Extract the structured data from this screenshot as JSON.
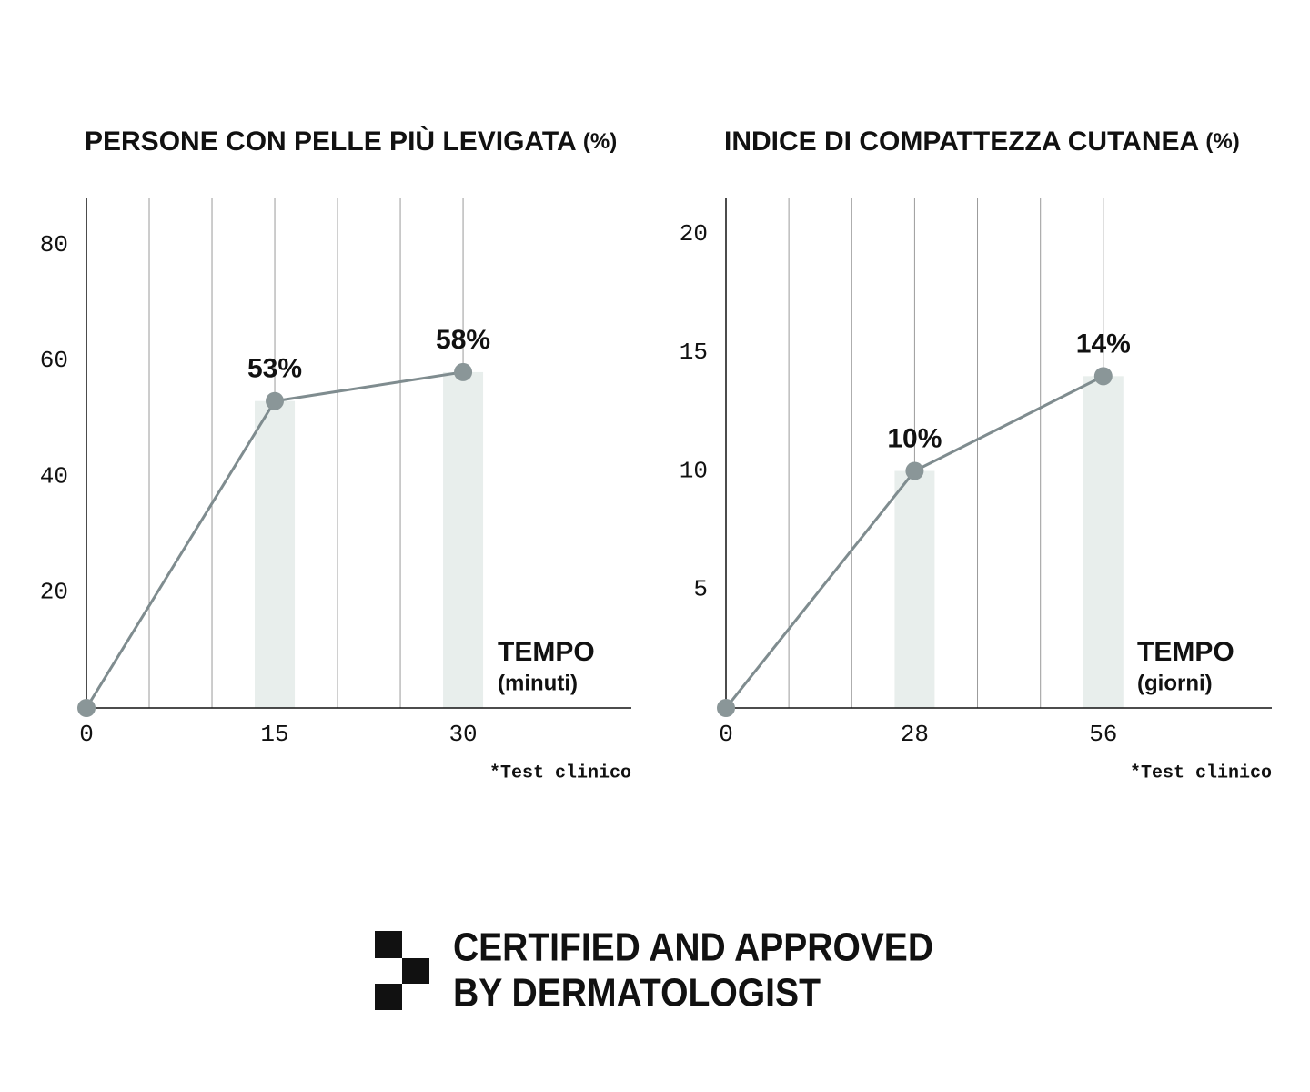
{
  "chart_data": [
    {
      "type": "line",
      "title": "PERSONE CON PELLE PIÙ LEVIGATA",
      "title_unit": "(%)",
      "x": [
        0,
        15,
        30
      ],
      "values": [
        0,
        53,
        58
      ],
      "value_labels": [
        null,
        "53%",
        "58%"
      ],
      "color": "#7f8c8f",
      "bar_color": "#e8eeec",
      "grid_color": "#9a9a9a",
      "xlim": [
        0,
        43.4
      ],
      "ylim": [
        0,
        88
      ],
      "xticks": [
        0,
        15,
        30
      ],
      "yticks": [
        20,
        40,
        60,
        80
      ],
      "xgrid": [
        5,
        10,
        15,
        20,
        25,
        30
      ],
      "x_label": "TEMPO",
      "x_unit": "(minuti)",
      "note": "*Test clinico"
    },
    {
      "type": "line",
      "title": "INDICE DI COMPATTEZZA CUTANEA",
      "title_unit": "(%)",
      "x": [
        0,
        28,
        56
      ],
      "values": [
        0,
        10,
        14
      ],
      "value_labels": [
        null,
        "10%",
        "14%"
      ],
      "color": "#7f8c8f",
      "bar_color": "#e8eeec",
      "grid_color": "#9a9a9a",
      "xlim": [
        0,
        81
      ],
      "ylim": [
        0,
        21.5
      ],
      "xticks": [
        0,
        28,
        56
      ],
      "yticks": [
        5,
        10,
        15,
        20
      ],
      "xgrid": [
        9.33,
        18.67,
        28,
        37.33,
        46.67,
        56
      ],
      "x_label": "TEMPO",
      "x_unit": "(giorni)",
      "note": "*Test clinico"
    }
  ],
  "badge": {
    "lines": [
      "CERTIFIED AND APPROVED",
      "BY DERMATOLOGIST"
    ]
  }
}
